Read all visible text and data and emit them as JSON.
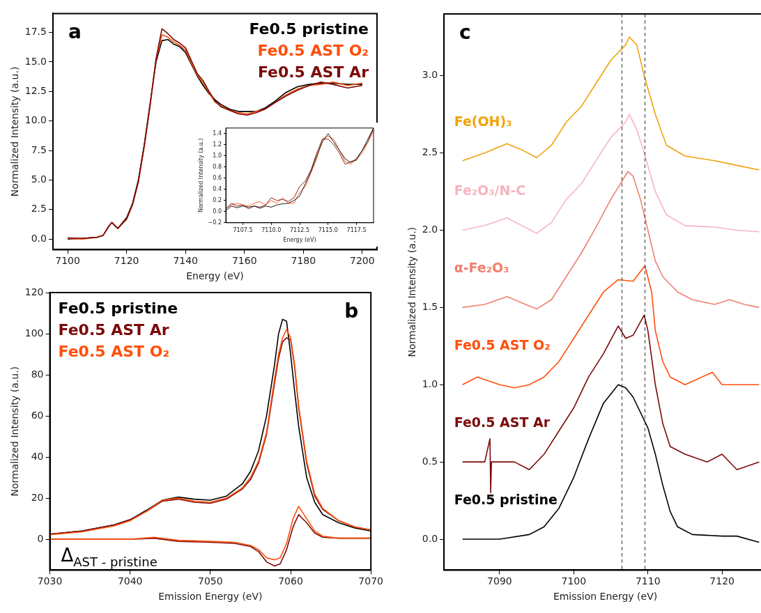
{
  "chart_data": [
    {
      "type": "line",
      "xlabel": "Energy (eV)",
      "ylabel": "Normalized Intensity (a.u.)",
      "annotations": [
        "a"
      ],
      "legend": "top right",
      "grid": false,
      "xlim": [
        7095,
        7205
      ],
      "xticks": [
        7100,
        7120,
        7140,
        7160,
        7180,
        7200
      ],
      "ylim": [
        -0.9,
        19.1
      ],
      "yticks": [
        {
          "value": 0,
          "label": "0.0"
        },
        {
          "value": 2.5,
          "label": "2.5"
        },
        {
          "value": 5,
          "label": "5.0"
        },
        {
          "value": 7.5,
          "label": "7.5"
        },
        {
          "value": 10,
          "label": "10.0"
        },
        {
          "value": 12.5,
          "label": "12.5"
        },
        {
          "value": 15,
          "label": "15.0"
        },
        {
          "value": 17.5,
          "label": "17.5"
        }
      ],
      "series": [
        {
          "name": "Fe0.5 pristine",
          "color": "#000000",
          "x": [
            7100,
            7105,
            7110,
            7112,
            7114,
            7115,
            7117,
            7120,
            7122,
            7124,
            7126,
            7128,
            7130,
            7132,
            7134,
            7136,
            7138,
            7140,
            7142,
            7144,
            7146,
            7148,
            7150,
            7152,
            7155,
            7158,
            7161,
            7164,
            7167,
            7170,
            7174,
            7178,
            7182,
            7186,
            7190,
            7195,
            7200
          ],
          "values": [
            0,
            0.05,
            0.15,
            0.3,
            1.1,
            1.4,
            0.9,
            1.8,
            3.0,
            5.0,
            8.0,
            11.5,
            15.0,
            16.8,
            16.9,
            16.5,
            16.3,
            15.8,
            14.8,
            13.8,
            13.0,
            12.3,
            11.8,
            11.4,
            11.0,
            10.8,
            10.8,
            10.8,
            11.1,
            11.6,
            12.4,
            12.9,
            13.1,
            13.2,
            13.2,
            13.1,
            13.1
          ]
        },
        {
          "name": "Fe0.5 AST O₂",
          "color": "#ff4f0a",
          "x": [
            7100,
            7105,
            7110,
            7112,
            7114,
            7115,
            7117,
            7120,
            7122,
            7124,
            7126,
            7128,
            7130,
            7132,
            7134,
            7136,
            7138,
            7140,
            7142,
            7144,
            7146,
            7148,
            7150,
            7152,
            7155,
            7158,
            7161,
            7164,
            7167,
            7170,
            7174,
            7178,
            7182,
            7186,
            7190,
            7195,
            7200
          ],
          "values": [
            0.05,
            0.0,
            0.15,
            0.3,
            1.1,
            1.4,
            0.9,
            1.7,
            2.9,
            4.8,
            7.8,
            11.3,
            15.2,
            17.3,
            17.1,
            16.7,
            16.4,
            16.0,
            14.9,
            13.9,
            13.2,
            12.4,
            11.6,
            11.3,
            10.9,
            10.7,
            10.6,
            10.8,
            11.0,
            11.5,
            12.2,
            12.7,
            13.0,
            13.1,
            13.3,
            13.0,
            13.2
          ]
        },
        {
          "name": "Fe0.5 AST Ar",
          "color": "#7b0a0a",
          "x": [
            7100,
            7105,
            7110,
            7112,
            7114,
            7115,
            7117,
            7120,
            7122,
            7124,
            7126,
            7128,
            7130,
            7132,
            7134,
            7136,
            7138,
            7140,
            7142,
            7144,
            7146,
            7148,
            7150,
            7152,
            7155,
            7158,
            7161,
            7164,
            7167,
            7170,
            7174,
            7178,
            7182,
            7186,
            7190,
            7195,
            7200
          ],
          "values": [
            0.1,
            0.05,
            0.15,
            0.3,
            1.1,
            1.4,
            0.9,
            1.7,
            2.9,
            4.9,
            7.9,
            11.4,
            15.3,
            17.8,
            17.4,
            16.9,
            16.6,
            16.2,
            15.1,
            14.0,
            13.4,
            12.5,
            11.7,
            11.2,
            10.9,
            10.6,
            10.5,
            10.7,
            11.0,
            11.5,
            12.1,
            12.6,
            13.0,
            13.3,
            13.1,
            12.8,
            13.0
          ]
        }
      ]
    },
    {
      "type": "line",
      "xlabel": "Energy (eV)",
      "ylabel": "Normalized Intensity (a.u.)",
      "grid": false,
      "xlim": [
        7106,
        7119
      ],
      "xticks": [
        {
          "value": 7107.5,
          "label": "7107.5"
        },
        {
          "value": 7110,
          "label": "7110.0"
        },
        {
          "value": 7112.5,
          "label": "7112.5"
        },
        {
          "value": 7115,
          "label": "7115.0"
        },
        {
          "value": 7117.5,
          "label": "7117.5"
        }
      ],
      "ylim": [
        -0.2,
        1.5
      ],
      "yticks": [
        {
          "value": -0.2,
          "label": "−0.2"
        },
        {
          "value": 0,
          "label": "0.0"
        },
        {
          "value": 0.2,
          "label": "0.2"
        },
        {
          "value": 0.4,
          "label": "0.4"
        },
        {
          "value": 0.6,
          "label": "0.6"
        },
        {
          "value": 0.8,
          "label": "0.8"
        },
        {
          "value": 1.0,
          "label": "1.0"
        },
        {
          "value": 1.2,
          "label": "1.2"
        },
        {
          "value": 1.4,
          "label": "1.4"
        }
      ],
      "series": [
        {
          "color": "#ff4f0a",
          "x": [
            7106,
            7106.5,
            7107,
            7107.5,
            7108,
            7108.5,
            7109,
            7109.5,
            7110,
            7110.5,
            7111,
            7111.5,
            7112,
            7112.5,
            7113,
            7113.5,
            7114,
            7114.5,
            7115,
            7115.5,
            7116,
            7116.5,
            7117,
            7117.5,
            7118,
            7118.5,
            7119
          ],
          "values": [
            0.05,
            0.12,
            0.15,
            0.12,
            0.1,
            0.15,
            0.18,
            0.12,
            0.2,
            0.15,
            0.25,
            0.15,
            0.15,
            0.35,
            0.45,
            0.7,
            0.95,
            1.3,
            1.35,
            1.3,
            1.1,
            0.9,
            0.85,
            0.95,
            1.05,
            1.25,
            1.45
          ]
        },
        {
          "color": "#7b0a0a",
          "x": [
            7106,
            7106.5,
            7107,
            7107.5,
            7108,
            7108.5,
            7109,
            7109.5,
            7110,
            7110.5,
            7111,
            7111.5,
            7112,
            7112.5,
            7113,
            7113.5,
            7114,
            7114.5,
            7115,
            7115.5,
            7116,
            7116.5,
            7117,
            7117.5,
            7118,
            7118.5,
            7119
          ],
          "values": [
            0.05,
            0.15,
            0.1,
            0.12,
            0.05,
            0.1,
            0.08,
            0.12,
            0.25,
            0.2,
            0.22,
            0.18,
            0.25,
            0.45,
            0.55,
            0.75,
            1.05,
            1.3,
            1.3,
            1.2,
            1.05,
            0.85,
            0.9,
            0.92,
            1.1,
            1.25,
            1.5
          ]
        },
        {
          "color": "#000000",
          "x": [
            7106,
            7106.5,
            7107,
            7107.5,
            7108,
            7108.5,
            7109,
            7109.5,
            7110,
            7110.5,
            7111,
            7111.5,
            7112,
            7112.5,
            7113,
            7113.5,
            7114,
            7114.5,
            7115,
            7115.5,
            7116,
            7116.5,
            7117,
            7117.5,
            7118,
            7118.5,
            7119
          ],
          "values": [
            0.02,
            0.1,
            0.07,
            0.1,
            0.08,
            0.1,
            0.06,
            0.1,
            0.08,
            0.12,
            0.14,
            0.15,
            0.2,
            0.28,
            0.5,
            0.72,
            1.0,
            1.25,
            1.4,
            1.25,
            1.1,
            0.95,
            0.88,
            0.95,
            1.1,
            1.3,
            1.5
          ]
        }
      ]
    },
    {
      "type": "line",
      "xlabel": "Emission Energy (eV)",
      "ylabel": "Normalized Intensity (a.u.)",
      "legend": "top left",
      "grid": false,
      "annotations": [
        "b",
        "Δ$_{AST - pristine}$"
      ],
      "xlim": [
        7030,
        7070
      ],
      "xticks": [
        7030,
        7040,
        7050,
        7060,
        7070
      ],
      "ylim": [
        -15,
        120
      ],
      "yticks": [
        0,
        20,
        40,
        60,
        80,
        100,
        120
      ],
      "series": [
        {
          "name": "Fe0.5 pristine",
          "color": "#000000",
          "x": [
            7030,
            7034,
            7038,
            7040,
            7042,
            7044,
            7046,
            7048,
            7050,
            7052,
            7054,
            7055,
            7056,
            7057,
            7058,
            7058.5,
            7059,
            7059.5,
            7060,
            7060.5,
            7061,
            7062,
            7063,
            7064,
            7066,
            7068,
            7070
          ],
          "values": [
            2.5,
            4,
            7,
            9.5,
            14,
            19,
            20.5,
            19.5,
            19,
            21,
            27,
            33,
            43,
            60,
            85,
            100,
            107,
            106,
            90,
            72,
            55,
            30,
            18,
            12,
            8,
            5.5,
            4
          ]
        },
        {
          "name": "Fe0.5 AST Ar",
          "color": "#7b0a0a",
          "x": [
            7030,
            7034,
            7038,
            7040,
            7042,
            7044,
            7046,
            7048,
            7050,
            7052,
            7054,
            7055,
            7056,
            7057,
            7058,
            7058.5,
            7059,
            7059.5,
            7060,
            7060.5,
            7061,
            7062,
            7063,
            7064,
            7066,
            7068,
            7070
          ],
          "values": [
            2.5,
            4,
            7,
            9.5,
            13.5,
            18.5,
            19.5,
            18,
            17.5,
            19.5,
            24.5,
            29,
            37,
            51,
            76,
            88,
            96,
            98,
            97,
            84,
            64,
            37,
            21,
            14.5,
            9,
            6,
            4.5
          ]
        },
        {
          "name": "Fe0.5 AST O₂",
          "color": "#ff4f0a",
          "x": [
            7030,
            7034,
            7038,
            7040,
            7042,
            7044,
            7046,
            7048,
            7050,
            7052,
            7054,
            7055,
            7056,
            7057,
            7058,
            7058.5,
            7059,
            7059.5,
            7060,
            7060.5,
            7061,
            7062,
            7063,
            7064,
            7066,
            7068,
            7070
          ],
          "values": [
            2.2,
            3.6,
            6.5,
            9,
            13.5,
            19,
            20,
            18.5,
            18,
            20,
            25,
            30,
            38,
            52,
            78,
            90,
            98,
            102,
            98,
            85,
            65,
            38,
            22,
            15,
            9,
            6,
            4.5
          ]
        },
        {
          "color": "#7b0a0a",
          "x": [
            7030,
            7040,
            7043,
            7046,
            7050,
            7053,
            7055,
            7056,
            7057,
            7058,
            7058.7,
            7059.5,
            7060.3,
            7061,
            7062,
            7063,
            7064,
            7066,
            7070
          ],
          "values": [
            0,
            0,
            0.5,
            -1,
            -1.5,
            -2,
            -3.5,
            -6,
            -11,
            -13,
            -12,
            -5,
            6,
            12,
            8,
            3,
            1,
            0.5,
            0.5
          ]
        },
        {
          "color": "#ff4f0a",
          "x": [
            7030,
            7040,
            7043,
            7046,
            7050,
            7053,
            7055,
            7056,
            7057,
            7058,
            7058.7,
            7059.5,
            7060.3,
            7061,
            7062,
            7063,
            7064,
            7066,
            7070
          ],
          "values": [
            0,
            0,
            1,
            -0.5,
            -1,
            -1.5,
            -3,
            -5,
            -9,
            -10,
            -9,
            -2,
            10,
            16,
            10,
            4,
            1.5,
            0.5,
            0.5
          ]
        }
      ]
    },
    {
      "type": "line",
      "xlabel": "Emission Energy (eV)",
      "ylabel": "Normalized Intensity (a.u.)",
      "annotations": [
        "c"
      ],
      "grid": false,
      "xlim": [
        7082.5,
        7126
      ],
      "xticks": [
        7090,
        7100,
        7110,
        7120
      ],
      "ylim": [
        -0.2,
        3.4
      ],
      "yticks": [
        {
          "value": 0,
          "label": "0.0"
        },
        {
          "value": 0.5,
          "label": "0.5"
        },
        {
          "value": 1,
          "label": "1.0"
        },
        {
          "value": 1.5,
          "label": "1.5"
        },
        {
          "value": 2,
          "label": "2.0"
        },
        {
          "value": 2.5,
          "label": "2.5"
        },
        {
          "value": 3,
          "label": "3.0"
        }
      ],
      "ref_lines": [
        {
          "axis": "x",
          "value": 7106.5,
          "color": "#333333",
          "line_style": "dashed"
        },
        {
          "axis": "x",
          "value": 7109.6,
          "color": "#333333",
          "line_style": "dashed"
        }
      ],
      "series": [
        {
          "name": "Fe0.5 pristine",
          "color": "#000000",
          "x": [
            7085,
            7090,
            7094,
            7096,
            7098,
            7100,
            7102,
            7104,
            7106,
            7107,
            7108,
            7110,
            7111,
            7112,
            7113,
            7114,
            7116,
            7120,
            7122,
            7125
          ],
          "values": [
            0,
            0,
            0.03,
            0.08,
            0.2,
            0.4,
            0.65,
            0.88,
            1.0,
            0.98,
            0.92,
            0.72,
            0.55,
            0.35,
            0.18,
            0.08,
            0.03,
            0.02,
            0.02,
            -0.02
          ]
        },
        {
          "name": "Fe0.5 AST Ar",
          "color": "#7b0a0a",
          "x": [
            7085,
            7088,
            7088.7,
            7088.8,
            7088.9,
            7092,
            7094,
            7096,
            7098,
            7100,
            7102,
            7104,
            7106,
            7107,
            7108,
            7109.5,
            7110,
            7111,
            7112,
            7113,
            7115,
            7118,
            7120,
            7122,
            7125
          ],
          "values": [
            0.5,
            0.5,
            0.65,
            0.3,
            0.5,
            0.5,
            0.45,
            0.55,
            0.7,
            0.85,
            1.05,
            1.2,
            1.38,
            1.3,
            1.32,
            1.45,
            1.35,
            1.0,
            0.75,
            0.6,
            0.55,
            0.5,
            0.55,
            0.45,
            0.5
          ]
        },
        {
          "name": "Fe0.5 AST O₂",
          "color": "#ff4f0a",
          "x": [
            7085,
            7087,
            7090,
            7092,
            7094,
            7096,
            7098,
            7100,
            7102,
            7104,
            7106,
            7108,
            7109.6,
            7110.5,
            7111,
            7112,
            7113,
            7115,
            7118.7,
            7120,
            7125
          ],
          "values": [
            1.0,
            1.05,
            1.0,
            0.98,
            1.0,
            1.05,
            1.15,
            1.3,
            1.45,
            1.6,
            1.68,
            1.67,
            1.77,
            1.6,
            1.35,
            1.15,
            1.05,
            1.0,
            1.08,
            1.0,
            1.0
          ]
        },
        {
          "name": "α-Fe₂O₃",
          "color": "#f08070",
          "x": [
            7085,
            7088,
            7091,
            7093,
            7095,
            7097,
            7099,
            7101,
            7103,
            7105,
            7107.3,
            7108,
            7109,
            7110,
            7111,
            7112,
            7114,
            7116,
            7119,
            7121,
            7123,
            7125
          ],
          "values": [
            1.5,
            1.52,
            1.57,
            1.53,
            1.49,
            1.55,
            1.7,
            1.85,
            2.02,
            2.2,
            2.38,
            2.35,
            2.2,
            2.0,
            1.8,
            1.7,
            1.6,
            1.55,
            1.52,
            1.55,
            1.52,
            1.5
          ]
        },
        {
          "name": "Fe₂O₃/N-C",
          "color": "#f7b4c0",
          "x": [
            7085,
            7088,
            7091,
            7093,
            7095,
            7097,
            7099,
            7101,
            7103,
            7105,
            7107,
            7107.5,
            7108.5,
            7109.5,
            7111,
            7112.5,
            7115,
            7119,
            7122,
            7125
          ],
          "values": [
            2.0,
            2.03,
            2.08,
            2.03,
            1.98,
            2.05,
            2.2,
            2.3,
            2.45,
            2.6,
            2.7,
            2.75,
            2.65,
            2.5,
            2.25,
            2.1,
            2.03,
            2.02,
            2.0,
            1.99
          ]
        },
        {
          "name": "Fe(OH)₃",
          "color": "#f0a30a",
          "x": [
            7085,
            7088,
            7091,
            7093,
            7095,
            7097,
            7099,
            7101,
            7103,
            7105,
            7107,
            7107.5,
            7108.5,
            7109.5,
            7111,
            7112.5,
            7115,
            7119,
            7122,
            7125
          ],
          "values": [
            2.45,
            2.5,
            2.56,
            2.52,
            2.47,
            2.55,
            2.7,
            2.8,
            2.95,
            3.1,
            3.2,
            3.25,
            3.2,
            3.0,
            2.75,
            2.55,
            2.48,
            2.45,
            2.42,
            2.39
          ]
        }
      ]
    }
  ]
}
